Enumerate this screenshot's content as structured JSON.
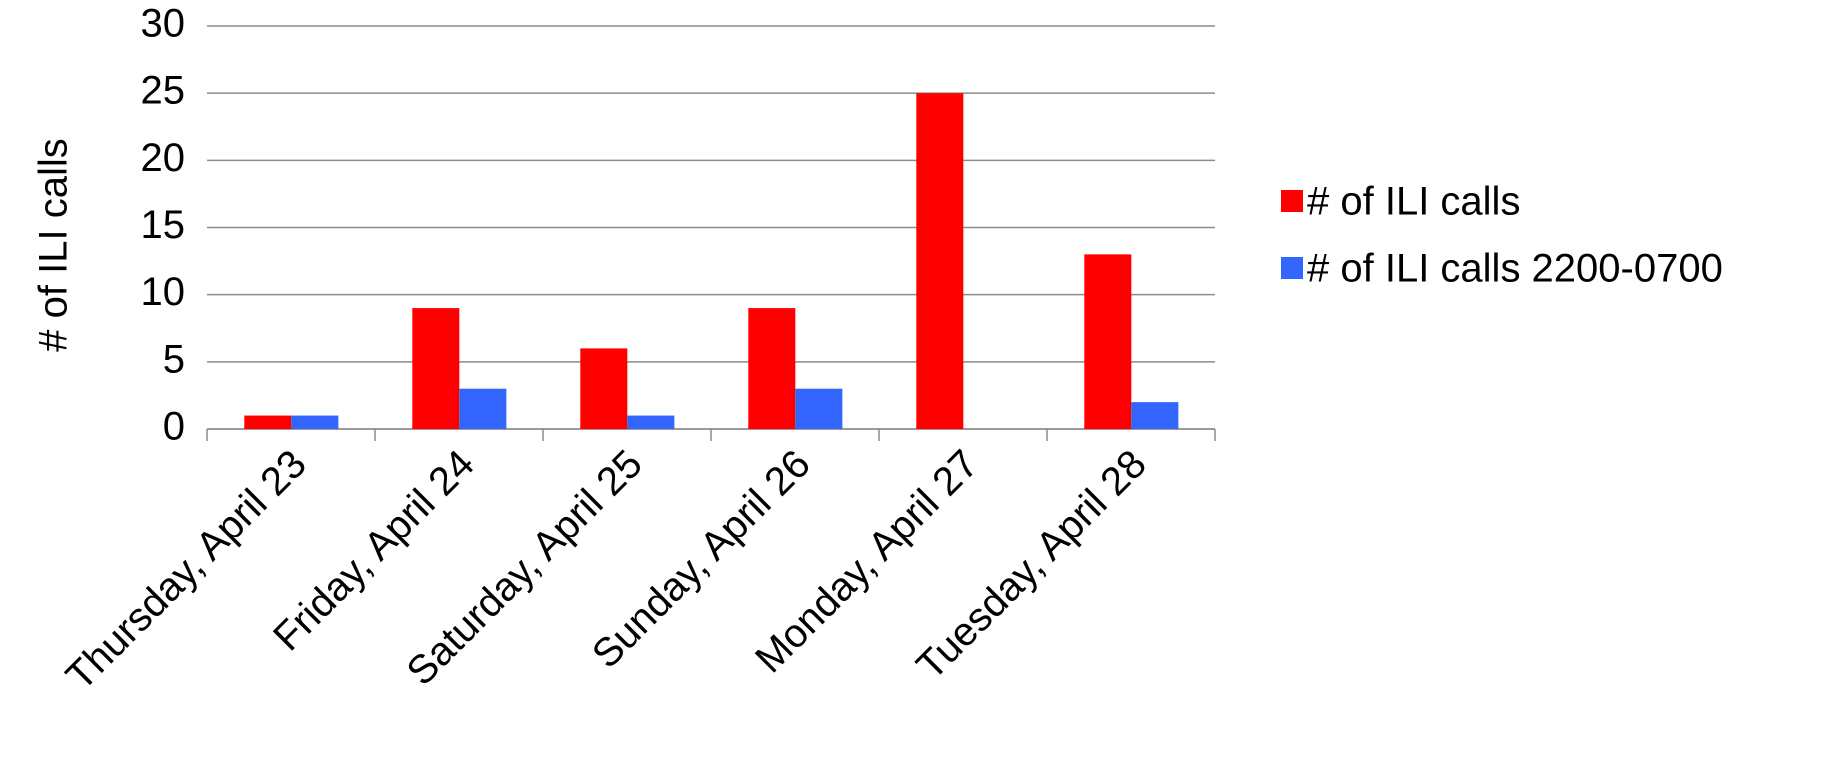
{
  "chart_data": {
    "type": "bar",
    "y_label": "# of ILI calls",
    "categories": [
      "Thursday, April 23",
      "Friday, April 24",
      "Saturday, April 25",
      "Sunday, April 26",
      "Monday, April 27",
      "Tuesday, April 28"
    ],
    "series": [
      {
        "name": "# of ILI calls",
        "color": "#ff0000",
        "values": [
          1,
          9,
          6,
          9,
          25,
          13
        ]
      },
      {
        "name": "# of ILI calls 2200-0700",
        "color": "#3366ff",
        "values": [
          1,
          3,
          1,
          3,
          0,
          2
        ]
      }
    ],
    "ylim": [
      0,
      30
    ],
    "yticks": [
      0,
      5,
      10,
      15,
      20,
      25,
      30
    ],
    "grid": true,
    "legend": "right"
  }
}
